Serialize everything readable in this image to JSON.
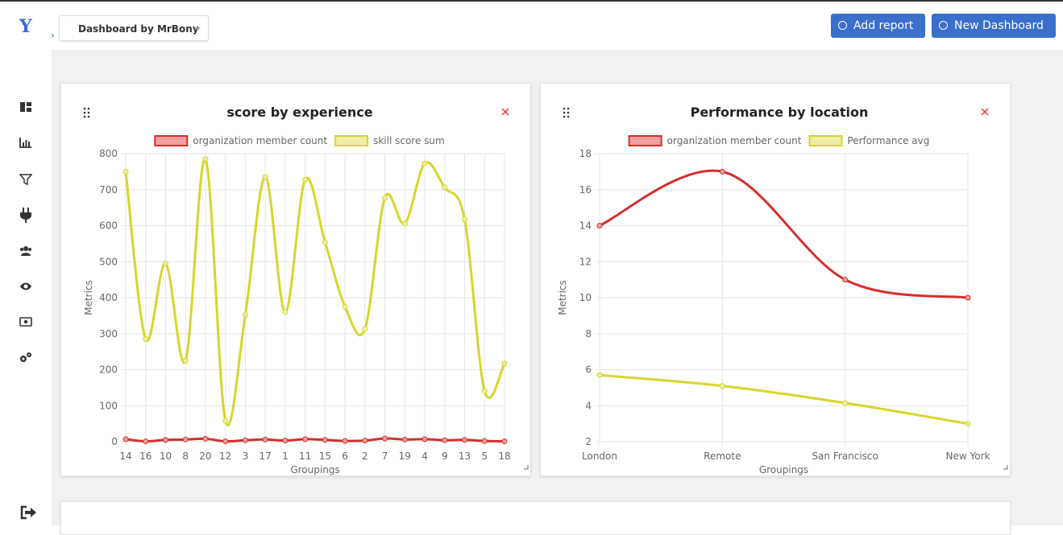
{
  "header": {
    "logo": "Y",
    "dashboard": "Dashboard by MrBony",
    "buttons": [
      "Add report",
      "New Dashboard"
    ]
  },
  "chart_data": [
    {
      "type": "line",
      "title": "score by experience",
      "x_label": "Groupings",
      "y_label": "Metrics",
      "categories": [
        "14",
        "16",
        "10",
        "8",
        "20",
        "12",
        "3",
        "17",
        "1",
        "11",
        "15",
        "6",
        "2",
        "7",
        "19",
        "4",
        "9",
        "13",
        "5",
        "18"
      ],
      "series": [
        {
          "name": "organization member count",
          "color": "#d32f2f",
          "fill": "#f0a0a0",
          "values": [
            7,
            1,
            5,
            6,
            8,
            1,
            4,
            6,
            3,
            7,
            5,
            2,
            3,
            9,
            6,
            7,
            4,
            5,
            2,
            1
          ]
        },
        {
          "name": "skill score sum",
          "color": "#d6d62c",
          "fill": "#eeeea8",
          "values": [
            750,
            285,
            495,
            225,
            785,
            58,
            353,
            735,
            360,
            728,
            554,
            375,
            313,
            677,
            606,
            773,
            706,
            617,
            141,
            217
          ]
        }
      ],
      "ylim": [
        0,
        800
      ],
      "yticks": [
        0,
        100,
        200,
        300,
        400,
        500,
        600,
        700,
        800
      ],
      "grid": true
    },
    {
      "type": "line",
      "title": "Performance by location",
      "x_label": "Groupings",
      "y_label": "Metrics",
      "categories": [
        "London",
        "Remote",
        "San Francisco",
        "New York"
      ],
      "series": [
        {
          "name": "organization member count",
          "color": "#d32f2f",
          "fill": "#f0a0a0",
          "values": [
            14,
            17,
            11,
            10
          ]
        },
        {
          "name": "Performance avg",
          "color": "#d6d62c",
          "fill": "#eeeea8",
          "values": [
            5.7,
            5.1,
            4.15,
            3
          ]
        }
      ],
      "ylim": [
        2,
        18
      ],
      "yticks": [
        2,
        4,
        6,
        8,
        10,
        12,
        14,
        16,
        18
      ],
      "grid": true
    }
  ]
}
